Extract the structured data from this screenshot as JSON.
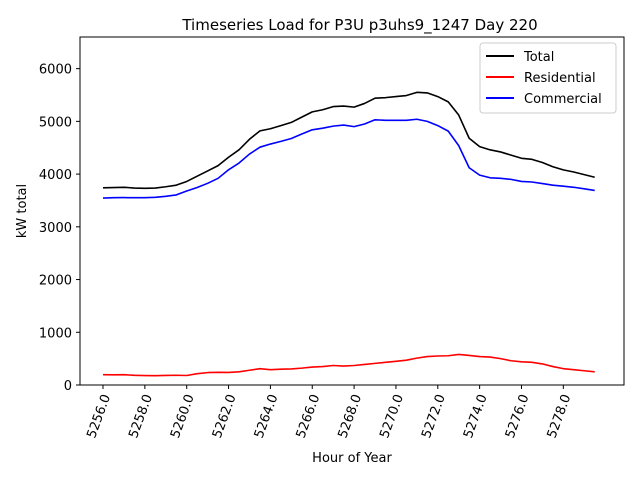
{
  "chart_data": {
    "type": "line",
    "title": "Timeseries Load for P3U p3uhs9_1247  Day 220",
    "xlabel": "Hour of Year",
    "ylabel": "kW total",
    "xlim": [
      5254.9,
      5280.9
    ],
    "ylim": [
      0,
      6600
    ],
    "xticks": [
      5256,
      5258,
      5260,
      5262,
      5264,
      5266,
      5268,
      5270,
      5272,
      5274,
      5276,
      5278
    ],
    "xtick_labels": [
      "5256.0",
      "5258.0",
      "5260.0",
      "5262.0",
      "5264.0",
      "5266.0",
      "5268.0",
      "5270.0",
      "5272.0",
      "5274.0",
      "5276.0",
      "5278.0"
    ],
    "yticks": [
      0,
      1000,
      2000,
      3000,
      4000,
      5000,
      6000
    ],
    "ytick_labels": [
      "0",
      "1000",
      "2000",
      "3000",
      "4000",
      "5000",
      "6000"
    ],
    "grid": false,
    "legend_position": "top-right",
    "x": [
      5256,
      5256.5,
      5257,
      5257.5,
      5258,
      5258.5,
      5259,
      5259.5,
      5260,
      5260.5,
      5261,
      5261.5,
      5262,
      5262.5,
      5263,
      5263.5,
      5264,
      5264.5,
      5265,
      5265.5,
      5266,
      5266.5,
      5267,
      5267.5,
      5268,
      5268.5,
      5269,
      5269.5,
      5270,
      5270.5,
      5271,
      5271.5,
      5272,
      5272.5,
      5273,
      5273.5,
      5274,
      5274.5,
      5275,
      5275.5,
      5276,
      5276.5,
      5277,
      5277.5,
      5278,
      5278.5,
      5279,
      5279.5
    ],
    "series": [
      {
        "name": "Total",
        "color": "#000000",
        "values": [
          3740,
          3745,
          3750,
          3735,
          3730,
          3735,
          3760,
          3790,
          3860,
          3960,
          4060,
          4160,
          4320,
          4460,
          4660,
          4820,
          4860,
          4920,
          4980,
          5080,
          5180,
          5220,
          5280,
          5290,
          5270,
          5340,
          5440,
          5450,
          5470,
          5490,
          5550,
          5540,
          5470,
          5370,
          5120,
          4680,
          4520,
          4460,
          4420,
          4360,
          4300,
          4280,
          4220,
          4140,
          4080,
          4040,
          3990,
          3940
        ]
      },
      {
        "name": "Residential",
        "color": "#ff0000",
        "values": [
          195,
          193,
          196,
          183,
          178,
          176,
          182,
          185,
          180,
          215,
          235,
          240,
          238,
          250,
          280,
          310,
          290,
          300,
          305,
          320,
          340,
          350,
          370,
          360,
          370,
          390,
          410,
          430,
          450,
          470,
          510,
          540,
          550,
          555,
          580,
          560,
          540,
          530,
          500,
          460,
          440,
          430,
          400,
          350,
          310,
          290,
          270,
          250
        ]
      },
      {
        "name": "Commercial",
        "color": "#0000ff",
        "values": [
          3545,
          3552,
          3554,
          3552,
          3552,
          3559,
          3578,
          3605,
          3680,
          3745,
          3825,
          3920,
          4082,
          4210,
          4380,
          4510,
          4570,
          4620,
          4675,
          4760,
          4840,
          4870,
          4910,
          4930,
          4900,
          4950,
          5030,
          5020,
          5020,
          5020,
          5040,
          5000,
          4920,
          4815,
          4540,
          4120,
          3980,
          3930,
          3920,
          3900,
          3860,
          3850,
          3820,
          3790,
          3770,
          3750,
          3720,
          3690
        ]
      }
    ]
  }
}
